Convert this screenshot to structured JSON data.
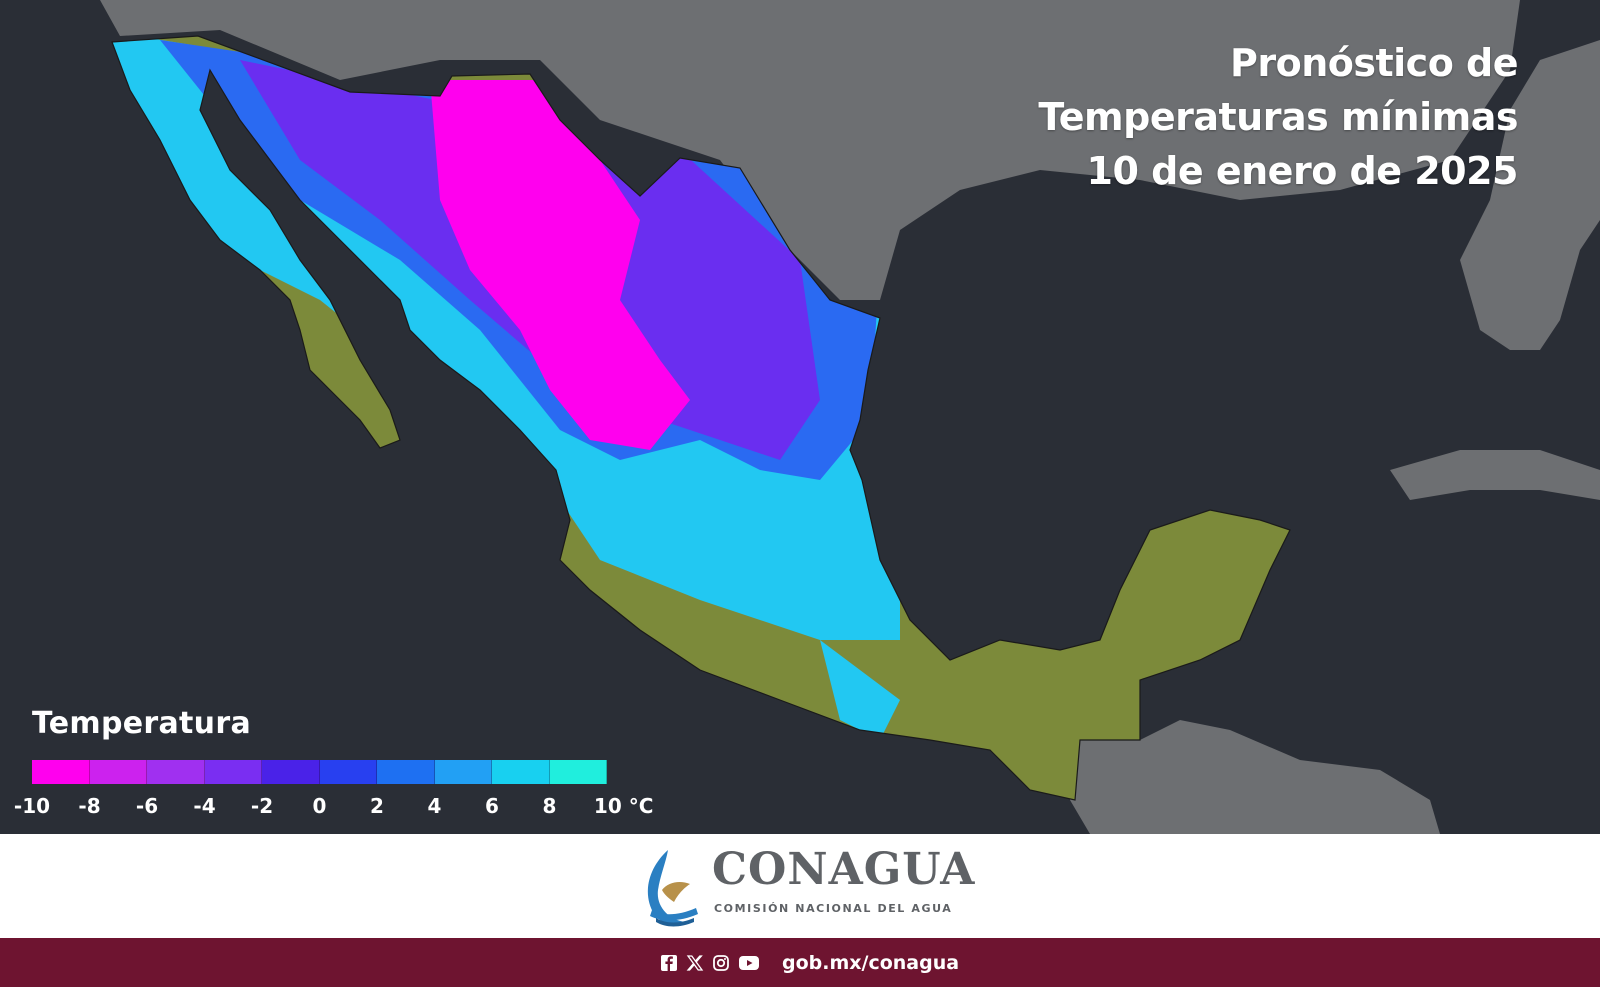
{
  "title": {
    "line1": "Pronóstico de",
    "line2": "Temperaturas mínimas",
    "line3": "10 de enero de 2025"
  },
  "legend": {
    "title": "Temperatura",
    "ticks": [
      "-10",
      "-8",
      "-6",
      "-4",
      "-2",
      "0",
      "2",
      "4",
      "6",
      "8",
      "10 °C"
    ],
    "colors": [
      "#ff00ee",
      "#cc22ee",
      "#a030f0",
      "#7a2ef2",
      "#4a22e8",
      "#2840f0",
      "#1e70f2",
      "#22a0f4",
      "#18d0f0",
      "#20eedd"
    ]
  },
  "map_colors": {
    "ocean": "#2a2e36",
    "land_outside": "#6d6f72",
    "warm_land": "#7c8a3a",
    "very_cold": "#ff00ee",
    "cold": "#6a2ef0",
    "cool": "#2a6af2",
    "mild": "#22c8f2"
  },
  "branding": {
    "name": "CONAGUA",
    "subtitle": "COMISIÓN NACIONAL DEL AGUA"
  },
  "footer": {
    "icons": [
      "facebook-icon",
      "x-icon",
      "instagram-icon",
      "youtube-icon"
    ],
    "url": "gob.mx/conagua"
  }
}
